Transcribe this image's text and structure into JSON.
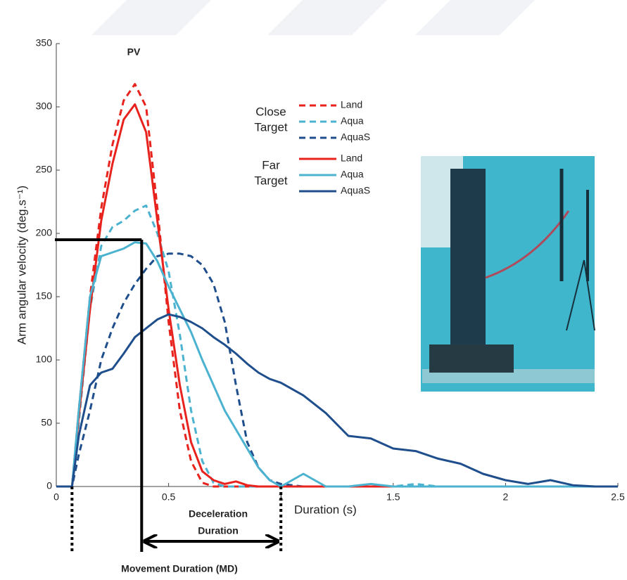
{
  "chart_data": {
    "type": "line",
    "xlabel": "Duration (s)",
    "ylabel": "Arm angular velocity (deg.s⁻¹)",
    "xlim": [
      0,
      2.5
    ],
    "ylim": [
      0,
      350
    ],
    "xticks": [
      0,
      0.5,
      1,
      1.5,
      2,
      2.5
    ],
    "yticks": [
      0,
      50,
      100,
      150,
      200,
      250,
      300,
      350
    ],
    "grid": false,
    "x": [
      0,
      0.05,
      0.07,
      0.1,
      0.15,
      0.2,
      0.25,
      0.3,
      0.35,
      0.4,
      0.45,
      0.5,
      0.55,
      0.6,
      0.65,
      0.7,
      0.75,
      0.8,
      0.85,
      0.9,
      0.95,
      1.0,
      1.1,
      1.2,
      1.3,
      1.4,
      1.5,
      1.6,
      1.7,
      1.8,
      1.9,
      2.0,
      2.1,
      2.2,
      2.3,
      2.4,
      2.5
    ],
    "series_groups": [
      {
        "name": [
          "Close",
          "Target"
        ],
        "dash": true,
        "series": [
          {
            "name": "Land",
            "color": "#e8221c",
            "values": [
              0,
              0,
              0,
              60,
              150,
              220,
              270,
              305,
              318,
              300,
              220,
              130,
              60,
              20,
              3,
              0,
              0,
              0,
              0,
              0,
              0,
              0,
              0,
              0,
              0,
              0,
              0,
              0,
              0,
              0,
              0,
              0,
              0,
              0,
              0,
              0,
              0
            ]
          },
          {
            "name": "Aqua",
            "color": "#4bb3d0",
            "values": [
              0,
              0,
              0,
              50,
              140,
              190,
              205,
              210,
              218,
              222,
              200,
              170,
              120,
              60,
              20,
              3,
              0,
              0,
              0,
              0,
              0,
              0,
              0,
              0,
              0,
              0,
              0,
              2,
              0,
              0,
              0,
              0,
              0,
              0,
              0,
              0,
              0
            ]
          },
          {
            "name": "AquaS",
            "color": "#1f4e8c",
            "values": [
              0,
              0,
              0,
              25,
              60,
              100,
              125,
              145,
              160,
              172,
              182,
              184,
              184,
              182,
              175,
              160,
              130,
              80,
              35,
              15,
              5,
              2,
              0,
              0,
              0,
              0,
              0,
              0,
              0,
              0,
              0,
              0,
              0,
              0,
              0,
              0,
              0
            ]
          }
        ]
      },
      {
        "name": [
          "Far",
          "Target"
        ],
        "dash": false,
        "series": [
          {
            "name": "Land",
            "color": "#e8221c",
            "values": [
              0,
              0,
              0,
              55,
              140,
              210,
              255,
              290,
              302,
              280,
              210,
              140,
              80,
              35,
              12,
              5,
              2,
              4,
              1,
              0,
              0,
              0,
              0,
              0,
              0,
              0,
              0,
              0,
              0,
              0,
              0,
              0,
              0,
              0,
              0,
              0,
              0
            ]
          },
          {
            "name": "Aqua",
            "color": "#4bb3d0",
            "values": [
              0,
              0,
              0,
              60,
              150,
              182,
              185,
              188,
              193,
              192,
              178,
              158,
              140,
              122,
              100,
              80,
              60,
              45,
              30,
              15,
              5,
              0,
              10,
              0,
              0,
              2,
              0,
              0,
              0,
              0,
              0,
              0,
              0,
              0,
              0,
              0,
              0
            ]
          },
          {
            "name": "AquaS",
            "color": "#1f4e8c",
            "values": [
              0,
              0,
              0,
              40,
              80,
              90,
              93,
              105,
              118,
              125,
              132,
              136,
              134,
              130,
              125,
              118,
              112,
              105,
              97,
              90,
              85,
              82,
              72,
              58,
              40,
              38,
              30,
              28,
              22,
              18,
              10,
              5,
              2,
              5,
              1,
              0,
              0
            ]
          }
        ]
      }
    ],
    "annotations": {
      "peak_label": "PV",
      "peak": {
        "x": 0.38,
        "y": 195
      },
      "onset": 0.07,
      "end": 1.0,
      "deceleration_label": [
        "Deceleration",
        "Duration"
      ],
      "movement_label": "Movement Duration (MD)"
    }
  }
}
